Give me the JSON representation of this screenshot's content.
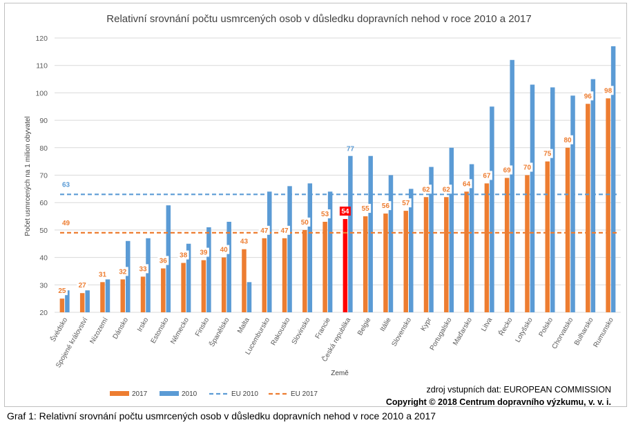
{
  "chart_data": {
    "type": "bar",
    "title": "Relativní srovnání počtu usmrcených osob v důsledku dopravních nehod v roce 2010 a 2017",
    "xlabel": "Země",
    "ylabel": "Počet usmrcených na 1 milion obyvatel",
    "ylim": [
      20,
      120
    ],
    "yticks": [
      20,
      30,
      40,
      50,
      60,
      70,
      80,
      90,
      100,
      110,
      120
    ],
    "grid": true,
    "legend_position": "bottom-left",
    "categories": [
      "Švédsko",
      "Spojené království",
      "Nizozemí",
      "Dánsko",
      "Irsko",
      "Estonsko",
      "Německo",
      "Finsko",
      "Španělsko",
      "Malta",
      "Lucembursko",
      "Rakousko",
      "Slovinsko",
      "Francie",
      "Česká republika",
      "Belgie",
      "Itálie",
      "Slovensko",
      "Kypr",
      "Portugalsko",
      "Maďarsko",
      "Litva",
      "Řecko",
      "Lotyšsko",
      "Polsko",
      "Chorvatsko",
      "Bulharsko",
      "Rumunsko"
    ],
    "series": [
      {
        "name": "2017",
        "color": "#ed7d31",
        "values": [
          25,
          27,
          31,
          32,
          33,
          36,
          38,
          39,
          40,
          43,
          47,
          47,
          50,
          53,
          54,
          55,
          56,
          57,
          62,
          62,
          64,
          67,
          69,
          70,
          75,
          80,
          96,
          98
        ]
      },
      {
        "name": "2010",
        "color": "#5b9bd5",
        "values": [
          28,
          28,
          32,
          46,
          47,
          59,
          45,
          51,
          53,
          31,
          64,
          66,
          67,
          64,
          77,
          77,
          70,
          65,
          73,
          80,
          74,
          95,
          112,
          103,
          102,
          99,
          105,
          117
        ]
      }
    ],
    "reference_lines": [
      {
        "name": "EU 2017",
        "value": 49,
        "label": "49",
        "color": "#ed7d31"
      },
      {
        "name": "EU 2010",
        "value": 63,
        "label": "63",
        "color": "#5b9bd5"
      }
    ],
    "highlight": {
      "category": "Česká republika",
      "series": "2017",
      "color": "#ff0000"
    },
    "extra_labels_2010": [
      {
        "category": "Česká republika",
        "label": "77"
      }
    ],
    "source_text": "zdroj vstupních dat: EUROPEAN COMMISSION",
    "copyright_text": "Copyright © 2018  Centrum dopravního výzkumu, v. v. i."
  },
  "caption": "Graf 1: Relativní srovnání počtu usmrcených osob v důsledku dopravních nehod v roce 2010 a 2017"
}
